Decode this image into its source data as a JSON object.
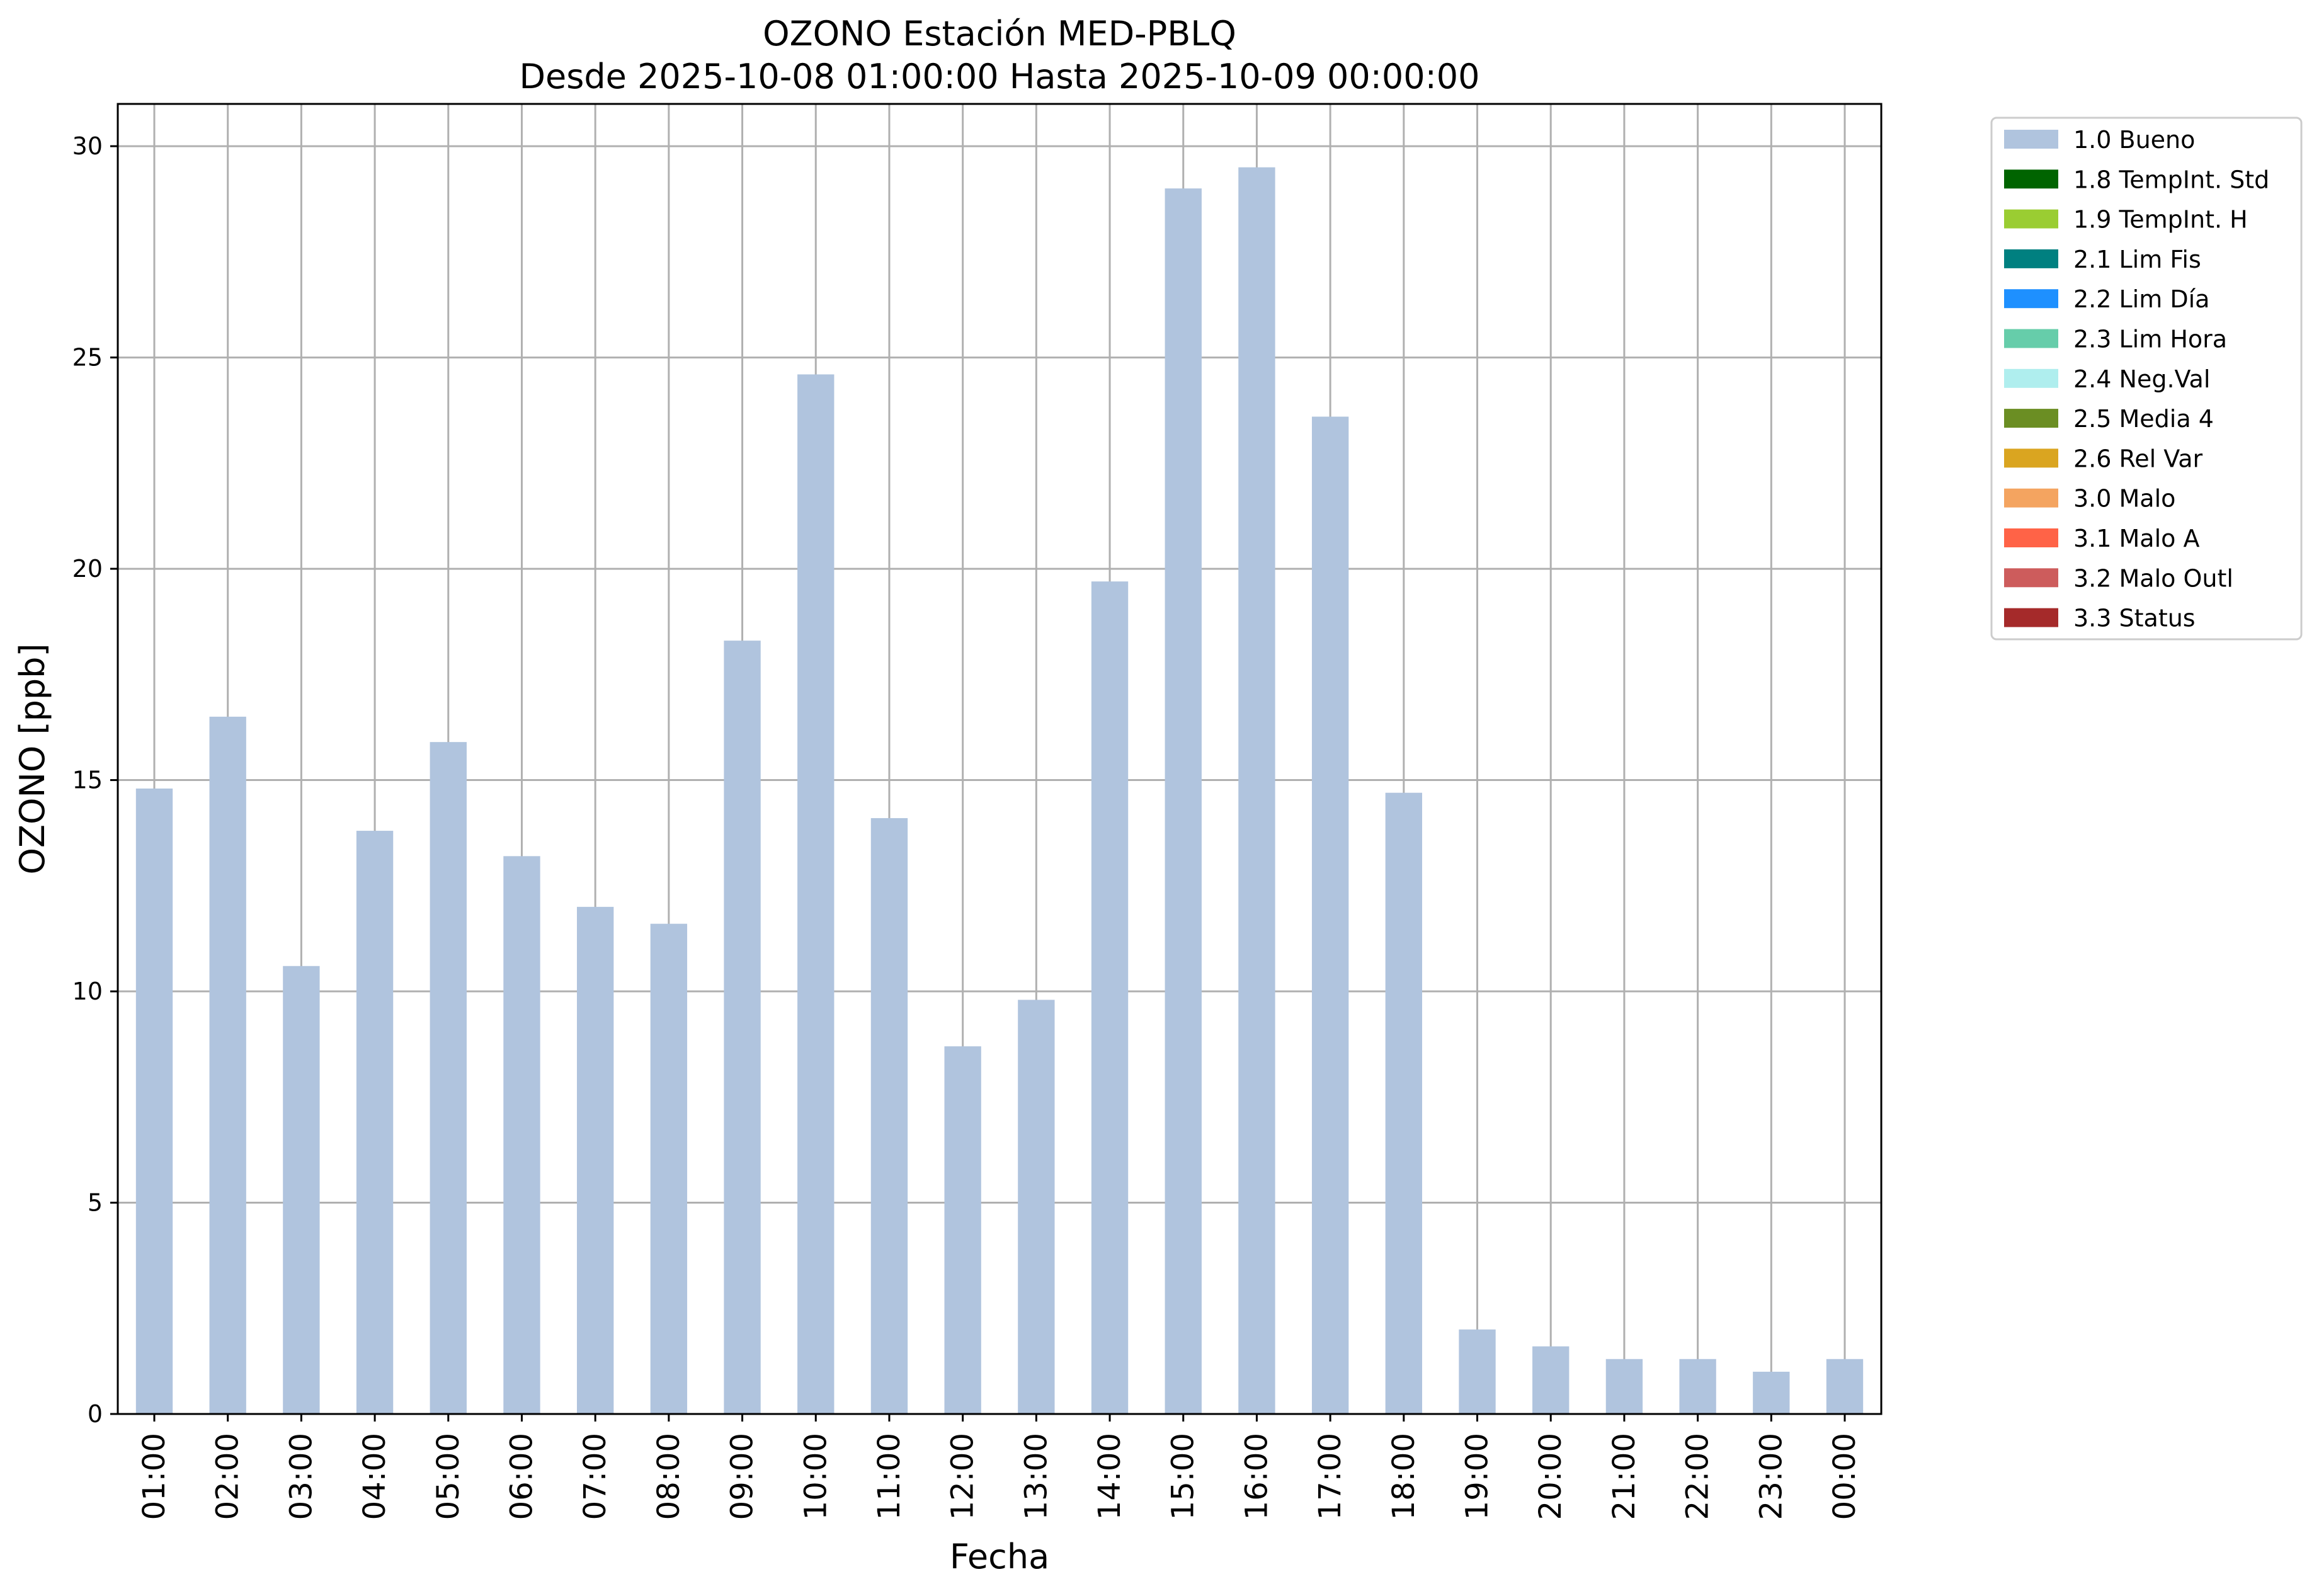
{
  "chart_data": {
    "type": "bar",
    "title": "OZONO Estación MED-PBLQ",
    "subtitle": "Desde 2025-10-08 01:00:00 Hasta 2025-10-09 00:00:00",
    "xlabel": "Fecha",
    "ylabel": "OZONO [ppb]",
    "ylim": [
      0,
      31
    ],
    "yticks": [
      0,
      5,
      10,
      15,
      20,
      25,
      30
    ],
    "grid": true,
    "legend_position": "outside-top-right",
    "categories": [
      "01:00",
      "02:00",
      "03:00",
      "04:00",
      "05:00",
      "06:00",
      "07:00",
      "08:00",
      "09:00",
      "10:00",
      "11:00",
      "12:00",
      "13:00",
      "14:00",
      "15:00",
      "16:00",
      "17:00",
      "18:00",
      "19:00",
      "20:00",
      "21:00",
      "22:00",
      "23:00",
      "00:00"
    ],
    "series": [
      {
        "name": "1.0 Bueno",
        "color": "#b0c4de",
        "values": [
          14.8,
          16.5,
          10.6,
          13.8,
          15.9,
          13.2,
          12.0,
          11.6,
          18.3,
          24.6,
          14.1,
          8.7,
          9.8,
          19.7,
          29.0,
          29.5,
          23.6,
          14.7,
          2.0,
          1.6,
          1.3,
          1.3,
          1.0,
          1.3
        ]
      }
    ],
    "legend": [
      {
        "label": "1.0 Bueno",
        "color": "#b0c4de"
      },
      {
        "label": "1.8 TempInt. Std",
        "color": "#006400"
      },
      {
        "label": "1.9 TempInt. H",
        "color": "#9acd32"
      },
      {
        "label": "2.1 Lim Fis",
        "color": "#008080"
      },
      {
        "label": "2.2 Lim Día",
        "color": "#1e90ff"
      },
      {
        "label": "2.3 Lim Hora",
        "color": "#66cdaa"
      },
      {
        "label": "2.4 Neg.Val",
        "color": "#afeeee"
      },
      {
        "label": "2.5 Media 4",
        "color": "#6b8e23"
      },
      {
        "label": "2.6 Rel Var",
        "color": "#daa520"
      },
      {
        "label": "3.0 Malo",
        "color": "#f4a460"
      },
      {
        "label": "3.1 Malo A",
        "color": "#ff6347"
      },
      {
        "label": "3.2 Malo Outl",
        "color": "#cd5c5c"
      },
      {
        "label": "3.3 Status",
        "color": "#a52a2a"
      }
    ]
  }
}
